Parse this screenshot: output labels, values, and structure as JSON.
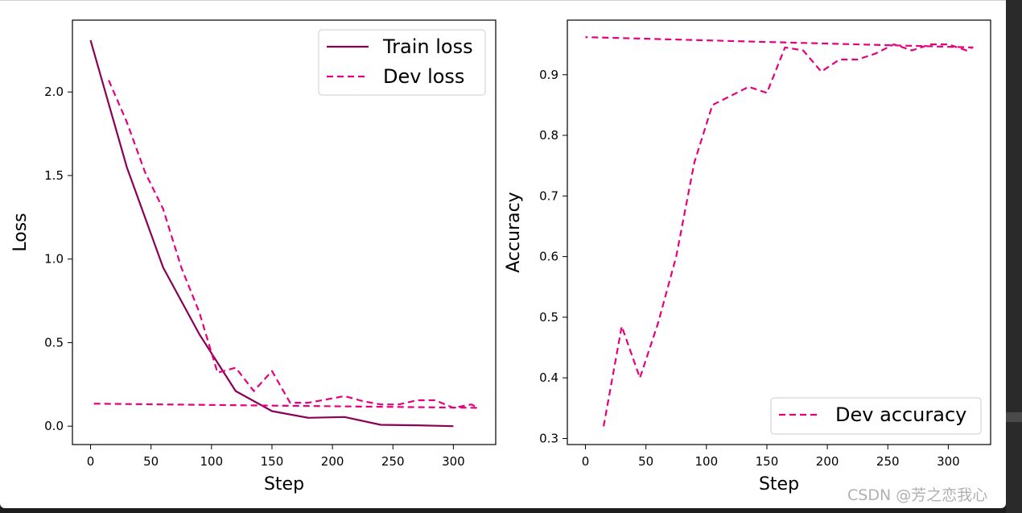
{
  "colors": {
    "train": "#8b0056",
    "dev": "#e6007e"
  },
  "watermark": "CSDN @芳之恋我心",
  "chart_data": [
    {
      "type": "line",
      "xlabel": "Step",
      "ylabel": "Loss",
      "xlim": [
        -15,
        335
      ],
      "ylim": [
        -0.11,
        2.43
      ],
      "xticks": [
        0,
        50,
        100,
        150,
        200,
        250,
        300
      ],
      "xtick_labels": [
        "0",
        "50",
        "100",
        "150",
        "200",
        "250",
        "300"
      ],
      "yticks": [
        0.0,
        0.5,
        1.0,
        1.5,
        2.0
      ],
      "ytick_labels": [
        "0.0",
        "0.5",
        "1.0",
        "1.5",
        "2.0"
      ],
      "legend_position": "top-right",
      "series": [
        {
          "name": "Train loss",
          "style": "solid",
          "color": "#8b0056",
          "x": [
            0,
            30,
            60,
            90,
            120,
            150,
            180,
            210,
            240,
            270,
            300
          ],
          "y": [
            2.31,
            1.55,
            0.95,
            0.55,
            0.21,
            0.09,
            0.05,
            0.055,
            0.008,
            0.005,
            0.0
          ]
        },
        {
          "name": "Dev loss",
          "style": "dashed",
          "color": "#e6007e",
          "x": [
            15,
            30,
            45,
            60,
            75,
            90,
            105,
            120,
            135,
            150,
            165,
            180,
            195,
            210,
            225,
            240,
            255,
            270,
            285,
            300,
            315,
            320,
            0
          ],
          "y": [
            2.07,
            1.82,
            1.52,
            1.3,
            0.95,
            0.68,
            0.32,
            0.35,
            0.21,
            0.33,
            0.14,
            0.14,
            0.16,
            0.18,
            0.15,
            0.13,
            0.13,
            0.155,
            0.155,
            0.11,
            0.13,
            0.11,
            0.135
          ]
        }
      ]
    },
    {
      "type": "line",
      "xlabel": "Step",
      "ylabel": "Accuracy",
      "xlim": [
        -15,
        335
      ],
      "ylim": [
        0.29,
        0.99
      ],
      "xticks": [
        0,
        50,
        100,
        150,
        200,
        250,
        300
      ],
      "xtick_labels": [
        "0",
        "50",
        "100",
        "150",
        "200",
        "250",
        "300"
      ],
      "yticks": [
        0.3,
        0.4,
        0.5,
        0.6,
        0.7,
        0.8,
        0.9
      ],
      "ytick_labels": [
        "0.3",
        "0.4",
        "0.5",
        "0.6",
        "0.7",
        "0.8",
        "0.9"
      ],
      "legend_position": "bottom-right",
      "series": [
        {
          "name": "Dev accuracy",
          "style": "dashed",
          "color": "#e6007e",
          "x": [
            15,
            30,
            45,
            60,
            75,
            90,
            105,
            120,
            135,
            150,
            165,
            180,
            195,
            210,
            225,
            240,
            255,
            270,
            285,
            300,
            315,
            320,
            0
          ],
          "y": [
            0.32,
            0.485,
            0.4,
            0.49,
            0.6,
            0.755,
            0.85,
            0.865,
            0.88,
            0.87,
            0.945,
            0.94,
            0.905,
            0.925,
            0.925,
            0.935,
            0.95,
            0.94,
            0.95,
            0.95,
            0.94,
            0.945,
            0.962
          ]
        }
      ]
    }
  ]
}
